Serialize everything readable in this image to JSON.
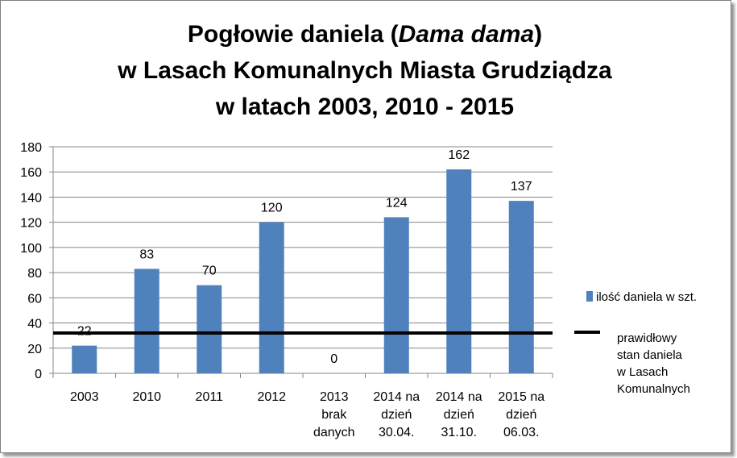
{
  "chart_data": {
    "type": "bar",
    "title_lines": [
      [
        "Pogłowie daniela (",
        "Dama dama",
        ")"
      ],
      "w Lasach Komunalnych Miasta Grudziądza",
      "w latach 2003, 2010 - 2015"
    ],
    "categories": [
      [
        "2003"
      ],
      [
        "2010"
      ],
      [
        "2011"
      ],
      [
        "2012"
      ],
      [
        "2013",
        "brak",
        "danych"
      ],
      [
        "2014 na",
        "dzień",
        "30.04."
      ],
      [
        "2014 na",
        "dzień",
        "31.10."
      ],
      [
        "2015 na",
        "dzień",
        "06.03."
      ]
    ],
    "series": [
      {
        "name": "ilość daniela w szt.",
        "values": [
          22,
          83,
          70,
          120,
          0,
          124,
          162,
          137
        ],
        "color": "#4f81bd"
      }
    ],
    "data_labels": [
      "22",
      "83",
      "70",
      "120",
      "0",
      "124",
      "162",
      "137"
    ],
    "reference_line": {
      "value": 32,
      "name_lines": [
        "prawidłowy",
        "stan daniela",
        "w Lasach",
        "Komunalnych"
      ],
      "color": "#000000"
    },
    "yticks": [
      0,
      20,
      40,
      60,
      80,
      100,
      120,
      140,
      160,
      180
    ],
    "ylim": [
      0,
      180
    ],
    "grid": true,
    "legend_position": "right"
  }
}
